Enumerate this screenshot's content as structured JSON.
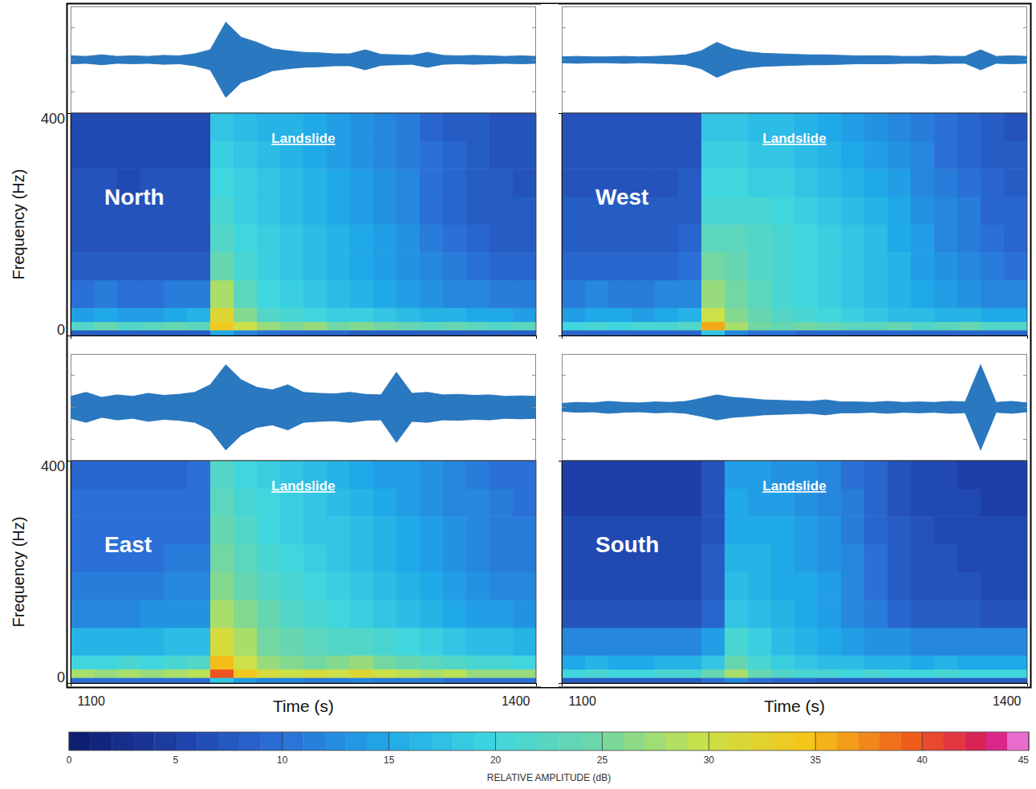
{
  "chart_data": {
    "type": "spectrogram",
    "xlabel": "Time (s)",
    "ylabel": "Frequency (Hz)",
    "xlim": [
      1100,
      1400
    ],
    "xticks": [
      1100,
      1400
    ],
    "ylim": [
      0,
      400
    ],
    "yticks": [
      0,
      400
    ],
    "wave_ylim": [
      -1,
      1
    ],
    "time_edges": [
      1100,
      1115,
      1130,
      1145,
      1160,
      1175,
      1190,
      1205,
      1220,
      1235,
      1250,
      1265,
      1280,
      1295,
      1310,
      1325,
      1340,
      1355,
      1370,
      1385,
      1400
    ],
    "freq_edges": [
      0,
      10,
      25,
      50,
      100,
      150,
      200,
      250,
      300,
      350,
      400
    ],
    "wave_time": [
      1100,
      1110,
      1120,
      1130,
      1140,
      1150,
      1160,
      1170,
      1180,
      1190,
      1200,
      1210,
      1220,
      1230,
      1240,
      1250,
      1260,
      1270,
      1280,
      1290,
      1300,
      1310,
      1320,
      1330,
      1340,
      1350,
      1360,
      1370,
      1380,
      1390,
      1400
    ],
    "colorbar": {
      "label": "RELATIVE AMPLITUDE (dB)",
      "range": [
        0,
        45
      ],
      "ticks": [
        0,
        5,
        10,
        15,
        20,
        25,
        30,
        35,
        40,
        45
      ]
    },
    "panels": [
      {
        "name": "North",
        "annotation": "Landslide",
        "waveform": [
          0.08,
          0.07,
          0.1,
          0.07,
          0.08,
          0.07,
          0.09,
          0.08,
          0.12,
          0.2,
          0.75,
          0.45,
          0.35,
          0.22,
          0.18,
          0.15,
          0.14,
          0.12,
          0.12,
          0.2,
          0.11,
          0.1,
          0.09,
          0.15,
          0.09,
          0.08,
          0.09,
          0.08,
          0.07,
          0.08,
          0.07
        ],
        "cells": [
          [
            8,
            8,
            8,
            8,
            8,
            8,
            15,
            12,
            10,
            9,
            9,
            9,
            8,
            8,
            8,
            8,
            8,
            8,
            8,
            8
          ],
          [
            22,
            24,
            22,
            23,
            24,
            23,
            34,
            30,
            27,
            26,
            27,
            25,
            26,
            25,
            24,
            23,
            24,
            23,
            22,
            23
          ],
          [
            14,
            15,
            14,
            14,
            15,
            16,
            32,
            26,
            22,
            21,
            20,
            19,
            19,
            18,
            17,
            16,
            16,
            15,
            15,
            14
          ],
          [
            10,
            11,
            10,
            10,
            11,
            11,
            28,
            23,
            20,
            19,
            18,
            17,
            16,
            15,
            14,
            13,
            12,
            12,
            11,
            11
          ],
          [
            8,
            8,
            8,
            8,
            8,
            8,
            24,
            21,
            19,
            18,
            17,
            16,
            15,
            14,
            13,
            12,
            11,
            10,
            9,
            9
          ],
          [
            7,
            7,
            7,
            7,
            7,
            7,
            22,
            20,
            19,
            18,
            17,
            16,
            15,
            14,
            13,
            11,
            10,
            9,
            8,
            8
          ],
          [
            7,
            7,
            7,
            7,
            7,
            7,
            21,
            19,
            18,
            17,
            16,
            15,
            14,
            13,
            12,
            10,
            9,
            8,
            8,
            8
          ],
          [
            7,
            7,
            6,
            7,
            7,
            7,
            20,
            19,
            18,
            17,
            16,
            15,
            14,
            13,
            12,
            10,
            9,
            8,
            8,
            7
          ],
          [
            6,
            6,
            6,
            6,
            6,
            6,
            19,
            18,
            17,
            16,
            15,
            14,
            13,
            12,
            11,
            10,
            9,
            8,
            7,
            7
          ],
          [
            6,
            6,
            6,
            6,
            6,
            6,
            18,
            17,
            16,
            16,
            15,
            14,
            13,
            12,
            11,
            9,
            8,
            8,
            7,
            7
          ]
        ]
      },
      {
        "name": "West",
        "annotation": "Landslide",
        "waveform": [
          0.06,
          0.07,
          0.06,
          0.06,
          0.07,
          0.06,
          0.07,
          0.08,
          0.1,
          0.18,
          0.35,
          0.22,
          0.16,
          0.13,
          0.12,
          0.11,
          0.1,
          0.1,
          0.09,
          0.08,
          0.08,
          0.08,
          0.07,
          0.07,
          0.08,
          0.07,
          0.07,
          0.2,
          0.07,
          0.08,
          0.07
        ],
        "cells": [
          [
            9,
            9,
            9,
            9,
            9,
            9,
            18,
            12,
            10,
            10,
            9,
            9,
            9,
            9,
            9,
            9,
            9,
            9,
            9,
            9
          ],
          [
            20,
            21,
            20,
            21,
            21,
            22,
            36,
            28,
            25,
            24,
            25,
            24,
            23,
            23,
            24,
            22,
            23,
            24,
            22,
            22
          ],
          [
            14,
            15,
            15,
            14,
            15,
            16,
            30,
            26,
            24,
            22,
            21,
            20,
            19,
            18,
            17,
            17,
            16,
            16,
            15,
            15
          ],
          [
            11,
            12,
            11,
            11,
            12,
            12,
            27,
            25,
            23,
            21,
            20,
            19,
            18,
            17,
            16,
            15,
            14,
            13,
            12,
            12
          ],
          [
            9,
            9,
            9,
            9,
            9,
            10,
            25,
            24,
            22,
            21,
            20,
            19,
            18,
            17,
            16,
            14,
            13,
            12,
            11,
            10
          ],
          [
            8,
            8,
            8,
            8,
            8,
            9,
            23,
            23,
            22,
            21,
            20,
            19,
            18,
            17,
            15,
            14,
            12,
            11,
            10,
            9
          ],
          [
            8,
            8,
            8,
            8,
            8,
            8,
            21,
            21,
            21,
            20,
            19,
            18,
            17,
            16,
            15,
            13,
            12,
            11,
            9,
            9
          ],
          [
            7,
            7,
            7,
            7,
            7,
            8,
            20,
            20,
            19,
            19,
            18,
            17,
            16,
            15,
            14,
            12,
            11,
            10,
            9,
            8
          ],
          [
            7,
            7,
            7,
            7,
            7,
            7,
            19,
            19,
            18,
            18,
            17,
            16,
            15,
            14,
            13,
            12,
            10,
            9,
            8,
            8
          ],
          [
            7,
            7,
            7,
            7,
            7,
            7,
            18,
            18,
            17,
            17,
            16,
            15,
            14,
            13,
            12,
            11,
            10,
            9,
            8,
            7
          ]
        ]
      },
      {
        "name": "East",
        "annotation": "Landslide",
        "waveform": [
          0.22,
          0.3,
          0.2,
          0.25,
          0.22,
          0.28,
          0.24,
          0.26,
          0.3,
          0.45,
          0.85,
          0.55,
          0.4,
          0.35,
          0.45,
          0.3,
          0.28,
          0.27,
          0.3,
          0.26,
          0.25,
          0.7,
          0.28,
          0.3,
          0.25,
          0.26,
          0.24,
          0.25,
          0.22,
          0.23,
          0.22
        ],
        "cells": [
          [
            10,
            10,
            10,
            10,
            10,
            10,
            18,
            14,
            12,
            12,
            11,
            11,
            12,
            11,
            11,
            11,
            10,
            10,
            10,
            10
          ],
          [
            28,
            27,
            28,
            27,
            28,
            29,
            40,
            34,
            31,
            30,
            31,
            30,
            32,
            30,
            29,
            28,
            29,
            27,
            27,
            27
          ],
          [
            20,
            20,
            21,
            20,
            21,
            22,
            35,
            30,
            27,
            26,
            25,
            26,
            27,
            25,
            24,
            23,
            22,
            21,
            21,
            20
          ],
          [
            16,
            16,
            16,
            16,
            17,
            17,
            31,
            28,
            25,
            24,
            23,
            22,
            22,
            21,
            20,
            19,
            18,
            17,
            17,
            16
          ],
          [
            12,
            12,
            12,
            13,
            13,
            13,
            28,
            26,
            24,
            22,
            21,
            20,
            19,
            18,
            17,
            16,
            15,
            14,
            14,
            13
          ],
          [
            11,
            11,
            11,
            11,
            12,
            12,
            26,
            24,
            22,
            21,
            20,
            19,
            18,
            17,
            16,
            15,
            14,
            13,
            12,
            12
          ],
          [
            10,
            10,
            10,
            10,
            11,
            11,
            25,
            23,
            21,
            20,
            19,
            18,
            17,
            16,
            15,
            14,
            13,
            12,
            11,
            11
          ],
          [
            10,
            10,
            10,
            10,
            10,
            10,
            24,
            22,
            20,
            19,
            18,
            18,
            17,
            16,
            15,
            14,
            13,
            12,
            11,
            11
          ],
          [
            10,
            10,
            10,
            10,
            10,
            10,
            23,
            21,
            20,
            19,
            18,
            17,
            16,
            15,
            14,
            13,
            12,
            12,
            11,
            10
          ],
          [
            9,
            9,
            9,
            9,
            9,
            10,
            22,
            20,
            19,
            18,
            17,
            16,
            15,
            14,
            14,
            13,
            12,
            11,
            10,
            10
          ]
        ]
      },
      {
        "name": "South",
        "annotation": "Landslide",
        "waveform": [
          0.08,
          0.1,
          0.09,
          0.12,
          0.1,
          0.09,
          0.11,
          0.1,
          0.12,
          0.18,
          0.25,
          0.2,
          0.18,
          0.15,
          0.14,
          0.13,
          0.12,
          0.15,
          0.11,
          0.11,
          0.1,
          0.12,
          0.1,
          0.11,
          0.1,
          0.12,
          0.11,
          0.85,
          0.1,
          0.12,
          0.09
        ],
        "cells": [
          [
            8,
            8,
            8,
            8,
            8,
            8,
            10,
            12,
            10,
            9,
            9,
            8,
            8,
            8,
            8,
            8,
            8,
            8,
            8,
            8
          ],
          [
            20,
            21,
            20,
            20,
            21,
            21,
            24,
            28,
            24,
            22,
            21,
            21,
            20,
            21,
            20,
            20,
            21,
            20,
            20,
            20
          ],
          [
            15,
            16,
            15,
            15,
            16,
            16,
            18,
            24,
            21,
            19,
            18,
            17,
            17,
            16,
            16,
            15,
            16,
            15,
            15,
            15
          ],
          [
            12,
            12,
            12,
            12,
            12,
            12,
            14,
            21,
            19,
            17,
            16,
            15,
            14,
            13,
            13,
            12,
            12,
            12,
            12,
            12
          ],
          [
            7,
            7,
            7,
            7,
            7,
            7,
            9,
            18,
            17,
            16,
            15,
            14,
            12,
            11,
            9,
            8,
            8,
            8,
            7,
            7
          ],
          [
            6,
            6,
            6,
            6,
            6,
            6,
            8,
            17,
            16,
            15,
            15,
            14,
            12,
            10,
            8,
            7,
            7,
            7,
            6,
            6
          ],
          [
            6,
            6,
            6,
            6,
            6,
            6,
            8,
            16,
            16,
            15,
            14,
            13,
            12,
            10,
            8,
            7,
            7,
            6,
            6,
            6
          ],
          [
            6,
            6,
            6,
            6,
            6,
            6,
            7,
            15,
            15,
            15,
            14,
            13,
            11,
            9,
            8,
            7,
            6,
            6,
            6,
            6
          ],
          [
            5,
            5,
            5,
            5,
            5,
            5,
            7,
            15,
            14,
            14,
            13,
            12,
            11,
            9,
            7,
            6,
            6,
            6,
            5,
            5
          ],
          [
            5,
            5,
            5,
            5,
            5,
            5,
            7,
            14,
            14,
            13,
            13,
            12,
            10,
            9,
            7,
            6,
            6,
            5,
            5,
            5
          ]
        ]
      }
    ]
  }
}
